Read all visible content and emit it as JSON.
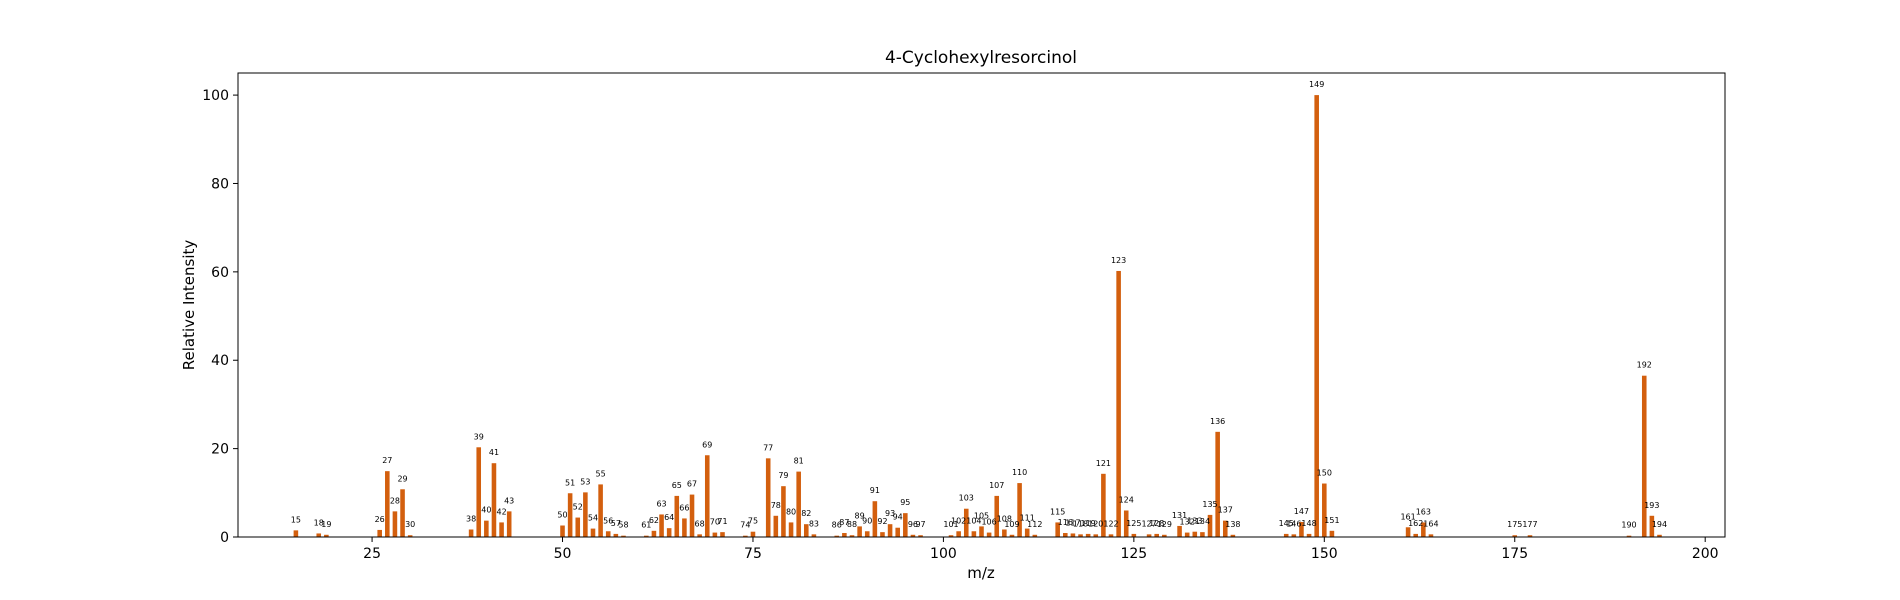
{
  "chart_data": {
    "type": "bar",
    "title": "4-Cyclohexylresorcinol",
    "xlabel": "m/z",
    "ylabel": "Relative Intensity",
    "xlim": [
      7.4,
      202.6
    ],
    "ylim": [
      0,
      105
    ],
    "xticks": [
      25,
      50,
      75,
      100,
      125,
      150,
      175,
      200
    ],
    "yticks": [
      0,
      20,
      40,
      60,
      80,
      100
    ],
    "grid": false,
    "legend": "none",
    "bar_color": "#d35f0e",
    "peaks": [
      {
        "x": 15,
        "y": 1.5,
        "label": "15"
      },
      {
        "x": 18,
        "y": 0.8,
        "label": "18"
      },
      {
        "x": 19,
        "y": 0.5,
        "label": "19"
      },
      {
        "x": 26,
        "y": 1.6,
        "label": "26"
      },
      {
        "x": 27,
        "y": 14.9,
        "label": "27"
      },
      {
        "x": 28,
        "y": 5.8,
        "label": "28"
      },
      {
        "x": 29,
        "y": 10.8,
        "label": "29"
      },
      {
        "x": 30,
        "y": 0.4,
        "label": "30"
      },
      {
        "x": 38,
        "y": 1.7,
        "label": "38"
      },
      {
        "x": 39,
        "y": 20.3,
        "label": "39"
      },
      {
        "x": 40,
        "y": 3.7,
        "label": "40"
      },
      {
        "x": 41,
        "y": 16.7,
        "label": "41"
      },
      {
        "x": 42,
        "y": 3.3,
        "label": "42"
      },
      {
        "x": 43,
        "y": 5.8,
        "label": "43"
      },
      {
        "x": 50,
        "y": 2.6,
        "label": "50"
      },
      {
        "x": 51,
        "y": 9.9,
        "label": "51"
      },
      {
        "x": 52,
        "y": 4.4,
        "label": "52"
      },
      {
        "x": 53,
        "y": 10.1,
        "label": "53"
      },
      {
        "x": 54,
        "y": 1.9,
        "label": "54"
      },
      {
        "x": 55,
        "y": 11.9,
        "label": "55"
      },
      {
        "x": 56,
        "y": 1.3,
        "label": "56"
      },
      {
        "x": 57,
        "y": 0.7,
        "label": "57"
      },
      {
        "x": 58,
        "y": 0.3,
        "label": "58"
      },
      {
        "x": 61,
        "y": 0.3,
        "label": "61"
      },
      {
        "x": 62,
        "y": 1.4,
        "label": "62"
      },
      {
        "x": 63,
        "y": 5.1,
        "label": "63"
      },
      {
        "x": 64,
        "y": 2.0,
        "label": "64"
      },
      {
        "x": 65,
        "y": 9.3,
        "label": "65"
      },
      {
        "x": 66,
        "y": 4.2,
        "label": "66"
      },
      {
        "x": 67,
        "y": 9.6,
        "label": "67"
      },
      {
        "x": 68,
        "y": 0.6,
        "label": "68"
      },
      {
        "x": 69,
        "y": 18.5,
        "label": "69"
      },
      {
        "x": 70,
        "y": 1.0,
        "label": "70"
      },
      {
        "x": 71,
        "y": 1.1,
        "label": "71"
      },
      {
        "x": 74,
        "y": 0.3,
        "label": "74"
      },
      {
        "x": 75,
        "y": 1.2,
        "label": "75"
      },
      {
        "x": 77,
        "y": 17.8,
        "label": "77"
      },
      {
        "x": 78,
        "y": 4.8,
        "label": "78"
      },
      {
        "x": 79,
        "y": 11.5,
        "label": "79"
      },
      {
        "x": 80,
        "y": 3.3,
        "label": "80"
      },
      {
        "x": 81,
        "y": 14.8,
        "label": "81"
      },
      {
        "x": 82,
        "y": 2.9,
        "label": "82"
      },
      {
        "x": 83,
        "y": 0.6,
        "label": "83"
      },
      {
        "x": 86,
        "y": 0.3,
        "label": "86"
      },
      {
        "x": 87,
        "y": 0.9,
        "label": "87"
      },
      {
        "x": 88,
        "y": 0.4,
        "label": "88"
      },
      {
        "x": 89,
        "y": 2.4,
        "label": "89"
      },
      {
        "x": 90,
        "y": 1.3,
        "label": "90"
      },
      {
        "x": 91,
        "y": 8.1,
        "label": "91"
      },
      {
        "x": 92,
        "y": 1.1,
        "label": "92"
      },
      {
        "x": 93,
        "y": 2.9,
        "label": "93"
      },
      {
        "x": 94,
        "y": 2.1,
        "label": "94"
      },
      {
        "x": 95,
        "y": 5.4,
        "label": "95"
      },
      {
        "x": 96,
        "y": 0.5,
        "label": "96"
      },
      {
        "x": 97,
        "y": 0.4,
        "label": "97"
      },
      {
        "x": 101,
        "y": 0.4,
        "label": "101"
      },
      {
        "x": 102,
        "y": 1.3,
        "label": "102"
      },
      {
        "x": 103,
        "y": 6.4,
        "label": "103"
      },
      {
        "x": 104,
        "y": 1.3,
        "label": "104"
      },
      {
        "x": 105,
        "y": 2.4,
        "label": "105"
      },
      {
        "x": 106,
        "y": 1.0,
        "label": "106"
      },
      {
        "x": 107,
        "y": 9.3,
        "label": "107"
      },
      {
        "x": 108,
        "y": 1.7,
        "label": "108"
      },
      {
        "x": 109,
        "y": 0.5,
        "label": "109"
      },
      {
        "x": 110,
        "y": 12.2,
        "label": "110"
      },
      {
        "x": 111,
        "y": 1.9,
        "label": "111"
      },
      {
        "x": 112,
        "y": 0.5,
        "label": "112"
      },
      {
        "x": 115,
        "y": 3.3,
        "label": "115"
      },
      {
        "x": 116,
        "y": 0.9,
        "label": "116"
      },
      {
        "x": 117,
        "y": 0.8,
        "label": "117"
      },
      {
        "x": 118,
        "y": 0.6,
        "label": "118"
      },
      {
        "x": 119,
        "y": 0.7,
        "label": "119"
      },
      {
        "x": 120,
        "y": 0.6,
        "label": "120"
      },
      {
        "x": 121,
        "y": 14.3,
        "label": "121"
      },
      {
        "x": 122,
        "y": 0.6,
        "label": "122"
      },
      {
        "x": 123,
        "y": 60.2,
        "label": "123"
      },
      {
        "x": 124,
        "y": 6.0,
        "label": "124"
      },
      {
        "x": 125,
        "y": 0.7,
        "label": "125"
      },
      {
        "x": 127,
        "y": 0.6,
        "label": "127"
      },
      {
        "x": 128,
        "y": 0.7,
        "label": "128"
      },
      {
        "x": 129,
        "y": 0.5,
        "label": "129"
      },
      {
        "x": 131,
        "y": 2.5,
        "label": "131"
      },
      {
        "x": 132,
        "y": 1.0,
        "label": "132"
      },
      {
        "x": 133,
        "y": 1.2,
        "label": "133"
      },
      {
        "x": 134,
        "y": 1.1,
        "label": "134"
      },
      {
        "x": 135,
        "y": 5.0,
        "label": "135"
      },
      {
        "x": 136,
        "y": 23.8,
        "label": "136"
      },
      {
        "x": 137,
        "y": 3.7,
        "label": "137"
      },
      {
        "x": 138,
        "y": 0.5,
        "label": "138"
      },
      {
        "x": 145,
        "y": 0.7,
        "label": "145"
      },
      {
        "x": 146,
        "y": 0.6,
        "label": "146"
      },
      {
        "x": 147,
        "y": 3.4,
        "label": "147"
      },
      {
        "x": 148,
        "y": 0.7,
        "label": "148"
      },
      {
        "x": 149,
        "y": 100,
        "label": "149"
      },
      {
        "x": 150,
        "y": 12.1,
        "label": "150"
      },
      {
        "x": 151,
        "y": 1.4,
        "label": "151"
      },
      {
        "x": 161,
        "y": 2.2,
        "label": "161"
      },
      {
        "x": 162,
        "y": 0.7,
        "label": "162"
      },
      {
        "x": 163,
        "y": 3.3,
        "label": "163"
      },
      {
        "x": 164,
        "y": 0.6,
        "label": "164"
      },
      {
        "x": 175,
        "y": 0.4,
        "label": "175"
      },
      {
        "x": 177,
        "y": 0.4,
        "label": "177"
      },
      {
        "x": 190,
        "y": 0.3,
        "label": "190"
      },
      {
        "x": 192,
        "y": 36.5,
        "label": "192"
      },
      {
        "x": 193,
        "y": 4.8,
        "label": "193"
      },
      {
        "x": 194,
        "y": 0.5,
        "label": "194"
      }
    ]
  }
}
